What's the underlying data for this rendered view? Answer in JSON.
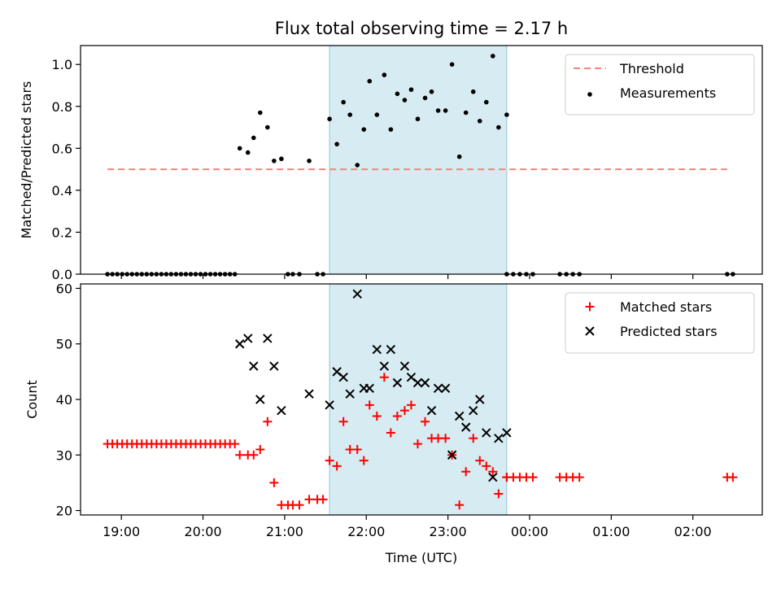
{
  "chart_data": [
    {
      "type": "scatter",
      "title": "Flux total observing time = 2.17 h",
      "xlabel": "",
      "ylabel": "Matched/Predicted stars",
      "xlim": [
        18.5,
        26.85
      ],
      "ylim": [
        0.0,
        1.09
      ],
      "yticks": [
        0.0,
        0.2,
        0.4,
        0.6,
        0.8,
        1.0
      ],
      "yticklabels": [
        "0.0",
        "0.2",
        "0.4",
        "0.6",
        "0.8",
        "1.0"
      ],
      "shaded_span": [
        21.55,
        23.72
      ],
      "legend_position": "top-right",
      "series": [
        {
          "name": "Threshold",
          "kind": "line",
          "color": "#ff7f7f",
          "dash": true,
          "x": [
            18.83,
            26.42
          ],
          "y": [
            0.5,
            0.5
          ]
        },
        {
          "name": "Measurements",
          "kind": "dots",
          "color": "#000000",
          "x": [
            18.83,
            18.89,
            18.95,
            19.01,
            19.07,
            19.13,
            19.19,
            19.25,
            19.31,
            19.37,
            19.43,
            19.49,
            19.55,
            19.61,
            19.67,
            19.73,
            19.79,
            19.85,
            19.91,
            19.97,
            20.03,
            20.09,
            20.15,
            20.21,
            20.27,
            20.33,
            20.39,
            20.45,
            20.55,
            20.62,
            20.7,
            20.79,
            20.87,
            20.96,
            21.04,
            21.1,
            21.18,
            21.3,
            21.4,
            21.47,
            21.55,
            21.64,
            21.72,
            21.8,
            21.89,
            21.97,
            22.04,
            22.13,
            22.22,
            22.3,
            22.38,
            22.47,
            22.55,
            22.63,
            22.72,
            22.8,
            22.88,
            22.97,
            23.05,
            23.14,
            23.22,
            23.31,
            23.39,
            23.47,
            23.55,
            23.62,
            23.72,
            23.72,
            23.8,
            23.88,
            23.96,
            24.04,
            24.37,
            24.45,
            24.53,
            24.61,
            26.42,
            26.49
          ],
          "y": [
            0,
            0,
            0,
            0,
            0,
            0,
            0,
            0,
            0,
            0,
            0,
            0,
            0,
            0,
            0,
            0,
            0,
            0,
            0,
            0,
            0,
            0,
            0,
            0,
            0,
            0,
            0,
            0.6,
            0.58,
            0.65,
            0.77,
            0.7,
            0.54,
            0.55,
            0,
            0,
            0,
            0.54,
            0,
            0,
            0.74,
            0.62,
            0.82,
            0.76,
            0.52,
            0.69,
            0.92,
            0.76,
            0.95,
            0.69,
            0.86,
            0.83,
            0.88,
            0.74,
            0.84,
            0.87,
            0.78,
            0.78,
            1.0,
            0.56,
            0.77,
            0.87,
            0.73,
            0.82,
            1.04,
            0.7,
            0.76,
            0,
            0,
            0,
            0,
            0,
            0,
            0,
            0,
            0,
            0,
            0
          ]
        }
      ]
    },
    {
      "type": "scatter",
      "title": "",
      "xlabel": "Time (UTC)",
      "ylabel": "Count",
      "xlim": [
        18.5,
        26.85
      ],
      "ylim": [
        19.2,
        60.8
      ],
      "yticks": [
        20,
        30,
        40,
        50,
        60
      ],
      "yticklabels": [
        "20",
        "30",
        "40",
        "50",
        "60"
      ],
      "xticks": [
        19,
        20,
        21,
        22,
        23,
        24,
        25,
        26
      ],
      "xticklabels": [
        "19:00",
        "20:00",
        "21:00",
        "22:00",
        "23:00",
        "00:00",
        "01:00",
        "02:00"
      ],
      "shaded_span": [
        21.55,
        23.72
      ],
      "legend_position": "top-right",
      "series": [
        {
          "name": "Matched stars",
          "kind": "plus",
          "color": "#ff0000",
          "x": [
            18.83,
            18.89,
            18.95,
            19.01,
            19.07,
            19.13,
            19.19,
            19.25,
            19.31,
            19.37,
            19.43,
            19.49,
            19.55,
            19.61,
            19.67,
            19.73,
            19.79,
            19.85,
            19.91,
            19.97,
            20.03,
            20.09,
            20.15,
            20.21,
            20.27,
            20.33,
            20.39,
            20.45,
            20.55,
            20.62,
            20.7,
            20.79,
            20.87,
            20.96,
            21.04,
            21.1,
            21.18,
            21.3,
            21.4,
            21.47,
            21.55,
            21.64,
            21.72,
            21.8,
            21.89,
            21.97,
            22.04,
            22.13,
            22.22,
            22.3,
            22.38,
            22.47,
            22.55,
            22.63,
            22.72,
            22.8,
            22.88,
            22.97,
            23.05,
            23.14,
            23.22,
            23.31,
            23.39,
            23.47,
            23.55,
            23.62,
            23.72,
            23.72,
            23.8,
            23.88,
            23.96,
            24.04,
            24.37,
            24.45,
            24.53,
            24.61,
            26.42,
            26.49
          ],
          "y": [
            32,
            32,
            32,
            32,
            32,
            32,
            32,
            32,
            32,
            32,
            32,
            32,
            32,
            32,
            32,
            32,
            32,
            32,
            32,
            32,
            32,
            32,
            32,
            32,
            32,
            32,
            32,
            30,
            30,
            30,
            31,
            36,
            25,
            21,
            21,
            21,
            21,
            22,
            22,
            22,
            29,
            28,
            36,
            31,
            31,
            29,
            39,
            37,
            44,
            34,
            37,
            38,
            39,
            32,
            36,
            33,
            33,
            33,
            30,
            21,
            27,
            33,
            29,
            28,
            27,
            23,
            26,
            26,
            26,
            26,
            26,
            26,
            26,
            26,
            26,
            26,
            26,
            26
          ]
        },
        {
          "name": "Predicted stars",
          "kind": "cross",
          "color": "#000000",
          "x": [
            20.45,
            20.55,
            20.62,
            20.7,
            20.79,
            20.87,
            20.96,
            21.3,
            21.55,
            21.64,
            21.72,
            21.8,
            21.89,
            21.97,
            22.04,
            22.13,
            22.22,
            22.3,
            22.38,
            22.47,
            22.55,
            22.63,
            22.72,
            22.8,
            22.88,
            22.97,
            23.05,
            23.14,
            23.22,
            23.31,
            23.39,
            23.47,
            23.55,
            23.62,
            23.72
          ],
          "y": [
            50,
            51,
            46,
            40,
            51,
            46,
            38,
            41,
            39,
            45,
            44,
            41,
            59,
            42,
            42,
            49,
            46,
            49,
            43,
            46,
            44,
            43,
            43,
            38,
            42,
            42,
            30,
            37,
            35,
            38,
            40,
            34,
            26,
            33,
            34
          ]
        }
      ]
    }
  ]
}
